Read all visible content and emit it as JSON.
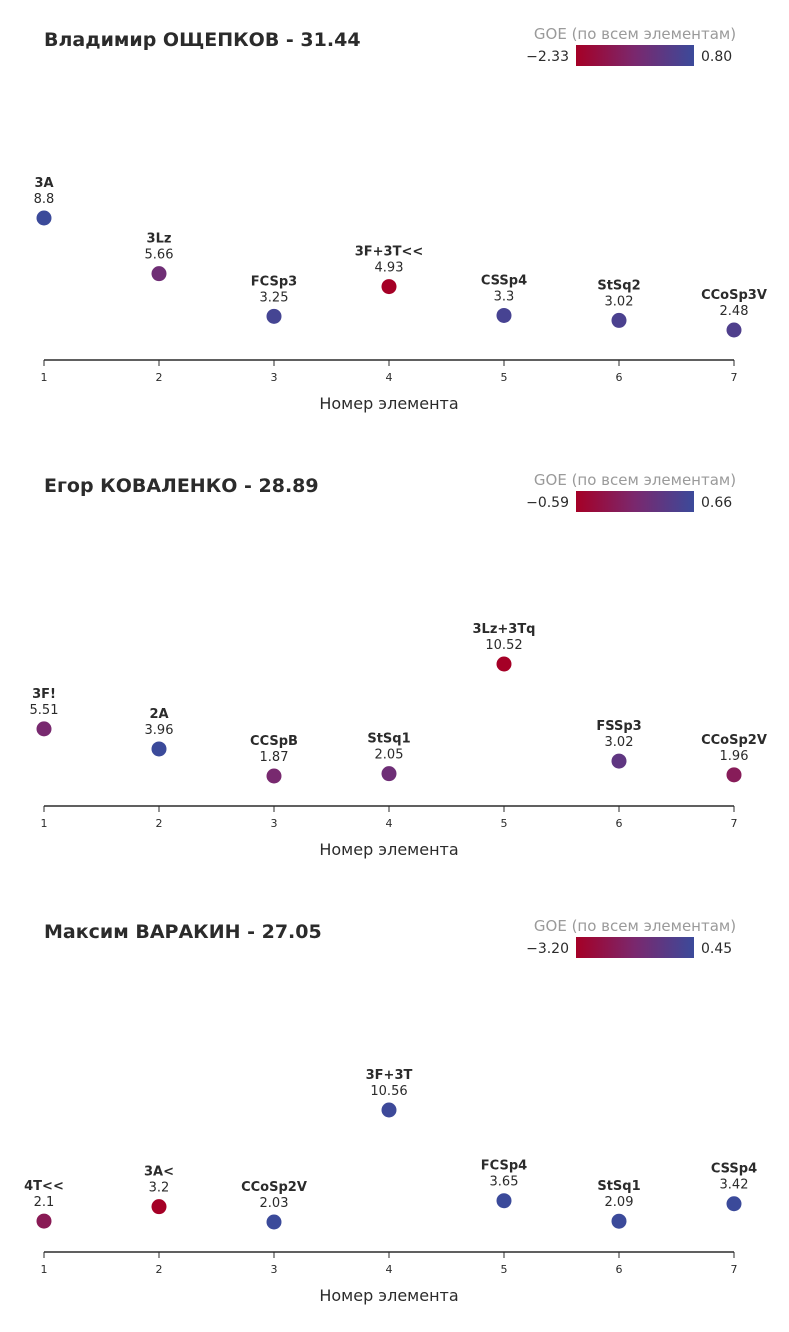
{
  "legend_title": "GOE (по всем элементам)",
  "xlabel": "Номер элемента",
  "colors": {
    "low": "#a50026",
    "high": "#3b4a9a",
    "axis": "#2b2b2b",
    "text": "#2b2b2b",
    "legend_text": "#9a9a9a"
  },
  "chart_data": [
    {
      "type": "scatter",
      "title": "Владимир ОЩЕПКОВ - 31.44",
      "goe_range": [
        "−2.33",
        "0.80"
      ],
      "goe_min": -2.33,
      "goe_max": 0.8,
      "xlim": [
        1,
        7
      ],
      "x_ticks": [
        "1",
        "2",
        "3",
        "4",
        "5",
        "6",
        "7"
      ],
      "xlabel": "Номер элемента",
      "points": [
        {
          "x": 1,
          "element": "3A",
          "value_label": "8.8",
          "value": 8.8,
          "goe": 0.8
        },
        {
          "x": 2,
          "element": "3Lz",
          "value_label": "5.66",
          "value": 5.66,
          "goe": -0.5
        },
        {
          "x": 3,
          "element": "FCSp3",
          "value_label": "3.25",
          "value": 3.25,
          "goe": 0.55
        },
        {
          "x": 4,
          "element": "3F+3T<<",
          "value_label": "4.93",
          "value": 4.93,
          "goe": -2.33
        },
        {
          "x": 5,
          "element": "CSSp4",
          "value_label": "3.3",
          "value": 3.3,
          "goe": 0.5
        },
        {
          "x": 6,
          "element": "StSq2",
          "value_label": "3.02",
          "value": 3.02,
          "goe": 0.4
        },
        {
          "x": 7,
          "element": "CCoSp3V",
          "value_label": "2.48",
          "value": 2.48,
          "goe": 0.3
        }
      ]
    },
    {
      "type": "scatter",
      "title": "Егор КОВАЛЕНКО - 28.89",
      "goe_range": [
        "−0.59",
        "0.66"
      ],
      "goe_min": -0.59,
      "goe_max": 0.66,
      "xlim": [
        1,
        7
      ],
      "x_ticks": [
        "1",
        "2",
        "3",
        "4",
        "5",
        "6",
        "7"
      ],
      "xlabel": "Номер элемента",
      "points": [
        {
          "x": 1,
          "element": "3F!",
          "value_label": "5.51",
          "value": 5.51,
          "goe": 0.05
        },
        {
          "x": 2,
          "element": "2A",
          "value_label": "3.96",
          "value": 3.96,
          "goe": 0.66
        },
        {
          "x": 3,
          "element": "CCSpB",
          "value_label": "1.87",
          "value": 1.87,
          "goe": 0.05
        },
        {
          "x": 4,
          "element": "StSq1",
          "value_label": "2.05",
          "value": 2.05,
          "goe": 0.15
        },
        {
          "x": 5,
          "element": "3Lz+3Tq",
          "value_label": "10.52",
          "value": 10.52,
          "goe": -0.59
        },
        {
          "x": 6,
          "element": "FSSp3",
          "value_label": "3.02",
          "value": 3.02,
          "goe": 0.3
        },
        {
          "x": 7,
          "element": "CCoSp2V",
          "value_label": "1.96",
          "value": 1.96,
          "goe": -0.15
        }
      ]
    },
    {
      "type": "scatter",
      "title": "Максим ВАРАКИН - 27.05",
      "goe_range": [
        "−3.20",
        "0.45"
      ],
      "goe_min": -3.2,
      "goe_max": 0.45,
      "xlim": [
        1,
        7
      ],
      "x_ticks": [
        "1",
        "2",
        "3",
        "4",
        "5",
        "6",
        "7"
      ],
      "xlabel": "Номер элемента",
      "points": [
        {
          "x": 1,
          "element": "4T<<",
          "value_label": "2.1",
          "value": 2.1,
          "goe": -2.0
        },
        {
          "x": 2,
          "element": "3A<",
          "value_label": "3.2",
          "value": 3.2,
          "goe": -3.2
        },
        {
          "x": 3,
          "element": "CCoSp2V",
          "value_label": "2.03",
          "value": 2.03,
          "goe": 0.45
        },
        {
          "x": 4,
          "element": "3F+3T",
          "value_label": "10.56",
          "value": 10.56,
          "goe": 0.4
        },
        {
          "x": 5,
          "element": "FCSp4",
          "value_label": "3.65",
          "value": 3.65,
          "goe": 0.45
        },
        {
          "x": 6,
          "element": "StSq1",
          "value_label": "2.09",
          "value": 2.09,
          "goe": 0.45
        },
        {
          "x": 7,
          "element": "CSSp4",
          "value_label": "3.42",
          "value": 3.42,
          "goe": 0.45
        }
      ]
    }
  ]
}
